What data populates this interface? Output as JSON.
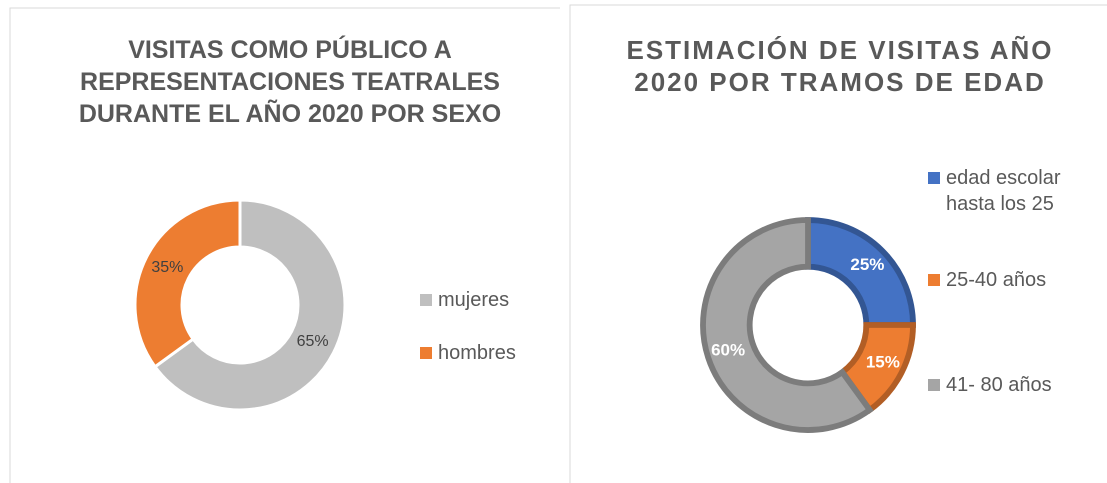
{
  "chart_data": [
    {
      "type": "donut",
      "title": "VISITAS COMO PÚBLICO  A REPRESENTACIONES TEATRALES DURANTE EL AÑO 2020  POR SEXO",
      "categories": [
        "mujeres",
        "hombres"
      ],
      "values": [
        65,
        35
      ],
      "value_labels": [
        "65%",
        "35%"
      ],
      "colors": [
        "#bfbfbf",
        "#ed7d31"
      ],
      "legend": "right"
    },
    {
      "type": "donut",
      "title": "ESTIMACIÓN DE VISITAS AÑO 2020 POR TRAMOS DE EDAD",
      "categories": [
        "edad escolar hasta los 25",
        "25-40 años",
        "41- 80 años"
      ],
      "values": [
        25,
        15,
        60
      ],
      "value_labels": [
        "25%",
        "15%",
        "60%"
      ],
      "colors": [
        "#4472c4",
        "#ed7d31",
        "#a5a5a5"
      ],
      "legend": "right"
    }
  ]
}
